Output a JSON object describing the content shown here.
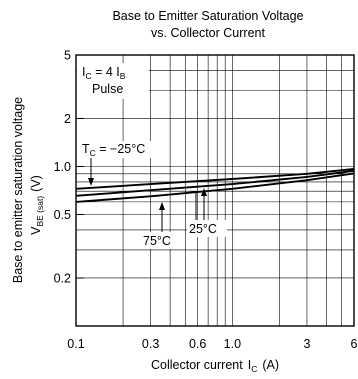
{
  "chart_data": {
    "type": "line",
    "title_line1": "Base to Emitter Saturation Voltage",
    "title_line2": "vs. Collector Current",
    "xlabel": "Collector current",
    "xlabel_symbol": "I",
    "xlabel_symbol_sub": "C",
    "xlabel_unit": "(A)",
    "ylabel": "Base to emitter saturation voltage",
    "ylabel_symbol": "V",
    "ylabel_symbol_sub": "BE (sat)",
    "ylabel_unit": "(V)",
    "x_scale": "log",
    "y_scale": "log",
    "xlim": [
      0.1,
      6
    ],
    "ylim": [
      0.1,
      5
    ],
    "grid": true,
    "x_ticks": [
      {
        "value": 0.1,
        "label": "0.1"
      },
      {
        "value": 0.3,
        "label": "0.3"
      },
      {
        "value": 0.6,
        "label": "0.6"
      },
      {
        "value": 1,
        "label": "1.0"
      },
      {
        "value": 3,
        "label": "3"
      },
      {
        "value": 6,
        "label": "6"
      }
    ],
    "y_ticks": [
      {
        "value": 0.2,
        "label": "0.2"
      },
      {
        "value": 0.5,
        "label": "0.5"
      },
      {
        "value": 1,
        "label": "1.0"
      },
      {
        "value": 2,
        "label": "2"
      },
      {
        "value": 5,
        "label": "5"
      }
    ],
    "condition_line1_main": "I",
    "condition_line1_sub": "C",
    "condition_line1_mid": " = 4 I",
    "condition_line1_sub2": "B",
    "condition_line2": "Pulse",
    "series": [
      {
        "label_main": "T",
        "label_sub": "C",
        "label_rest": " = −25°C",
        "x": [
          0.1,
          0.3,
          1,
          3,
          6
        ],
        "y": [
          0.725,
          0.775,
          0.835,
          0.9,
          0.965
        ]
      },
      {
        "label": "25°C",
        "x": [
          0.1,
          0.3,
          1,
          3,
          6
        ],
        "y": [
          0.655,
          0.71,
          0.775,
          0.86,
          0.94
        ]
      },
      {
        "label": "75°C",
        "x": [
          0.1,
          0.3,
          1,
          3,
          6
        ],
        "y": [
          0.6,
          0.65,
          0.725,
          0.82,
          0.905
        ]
      }
    ]
  }
}
